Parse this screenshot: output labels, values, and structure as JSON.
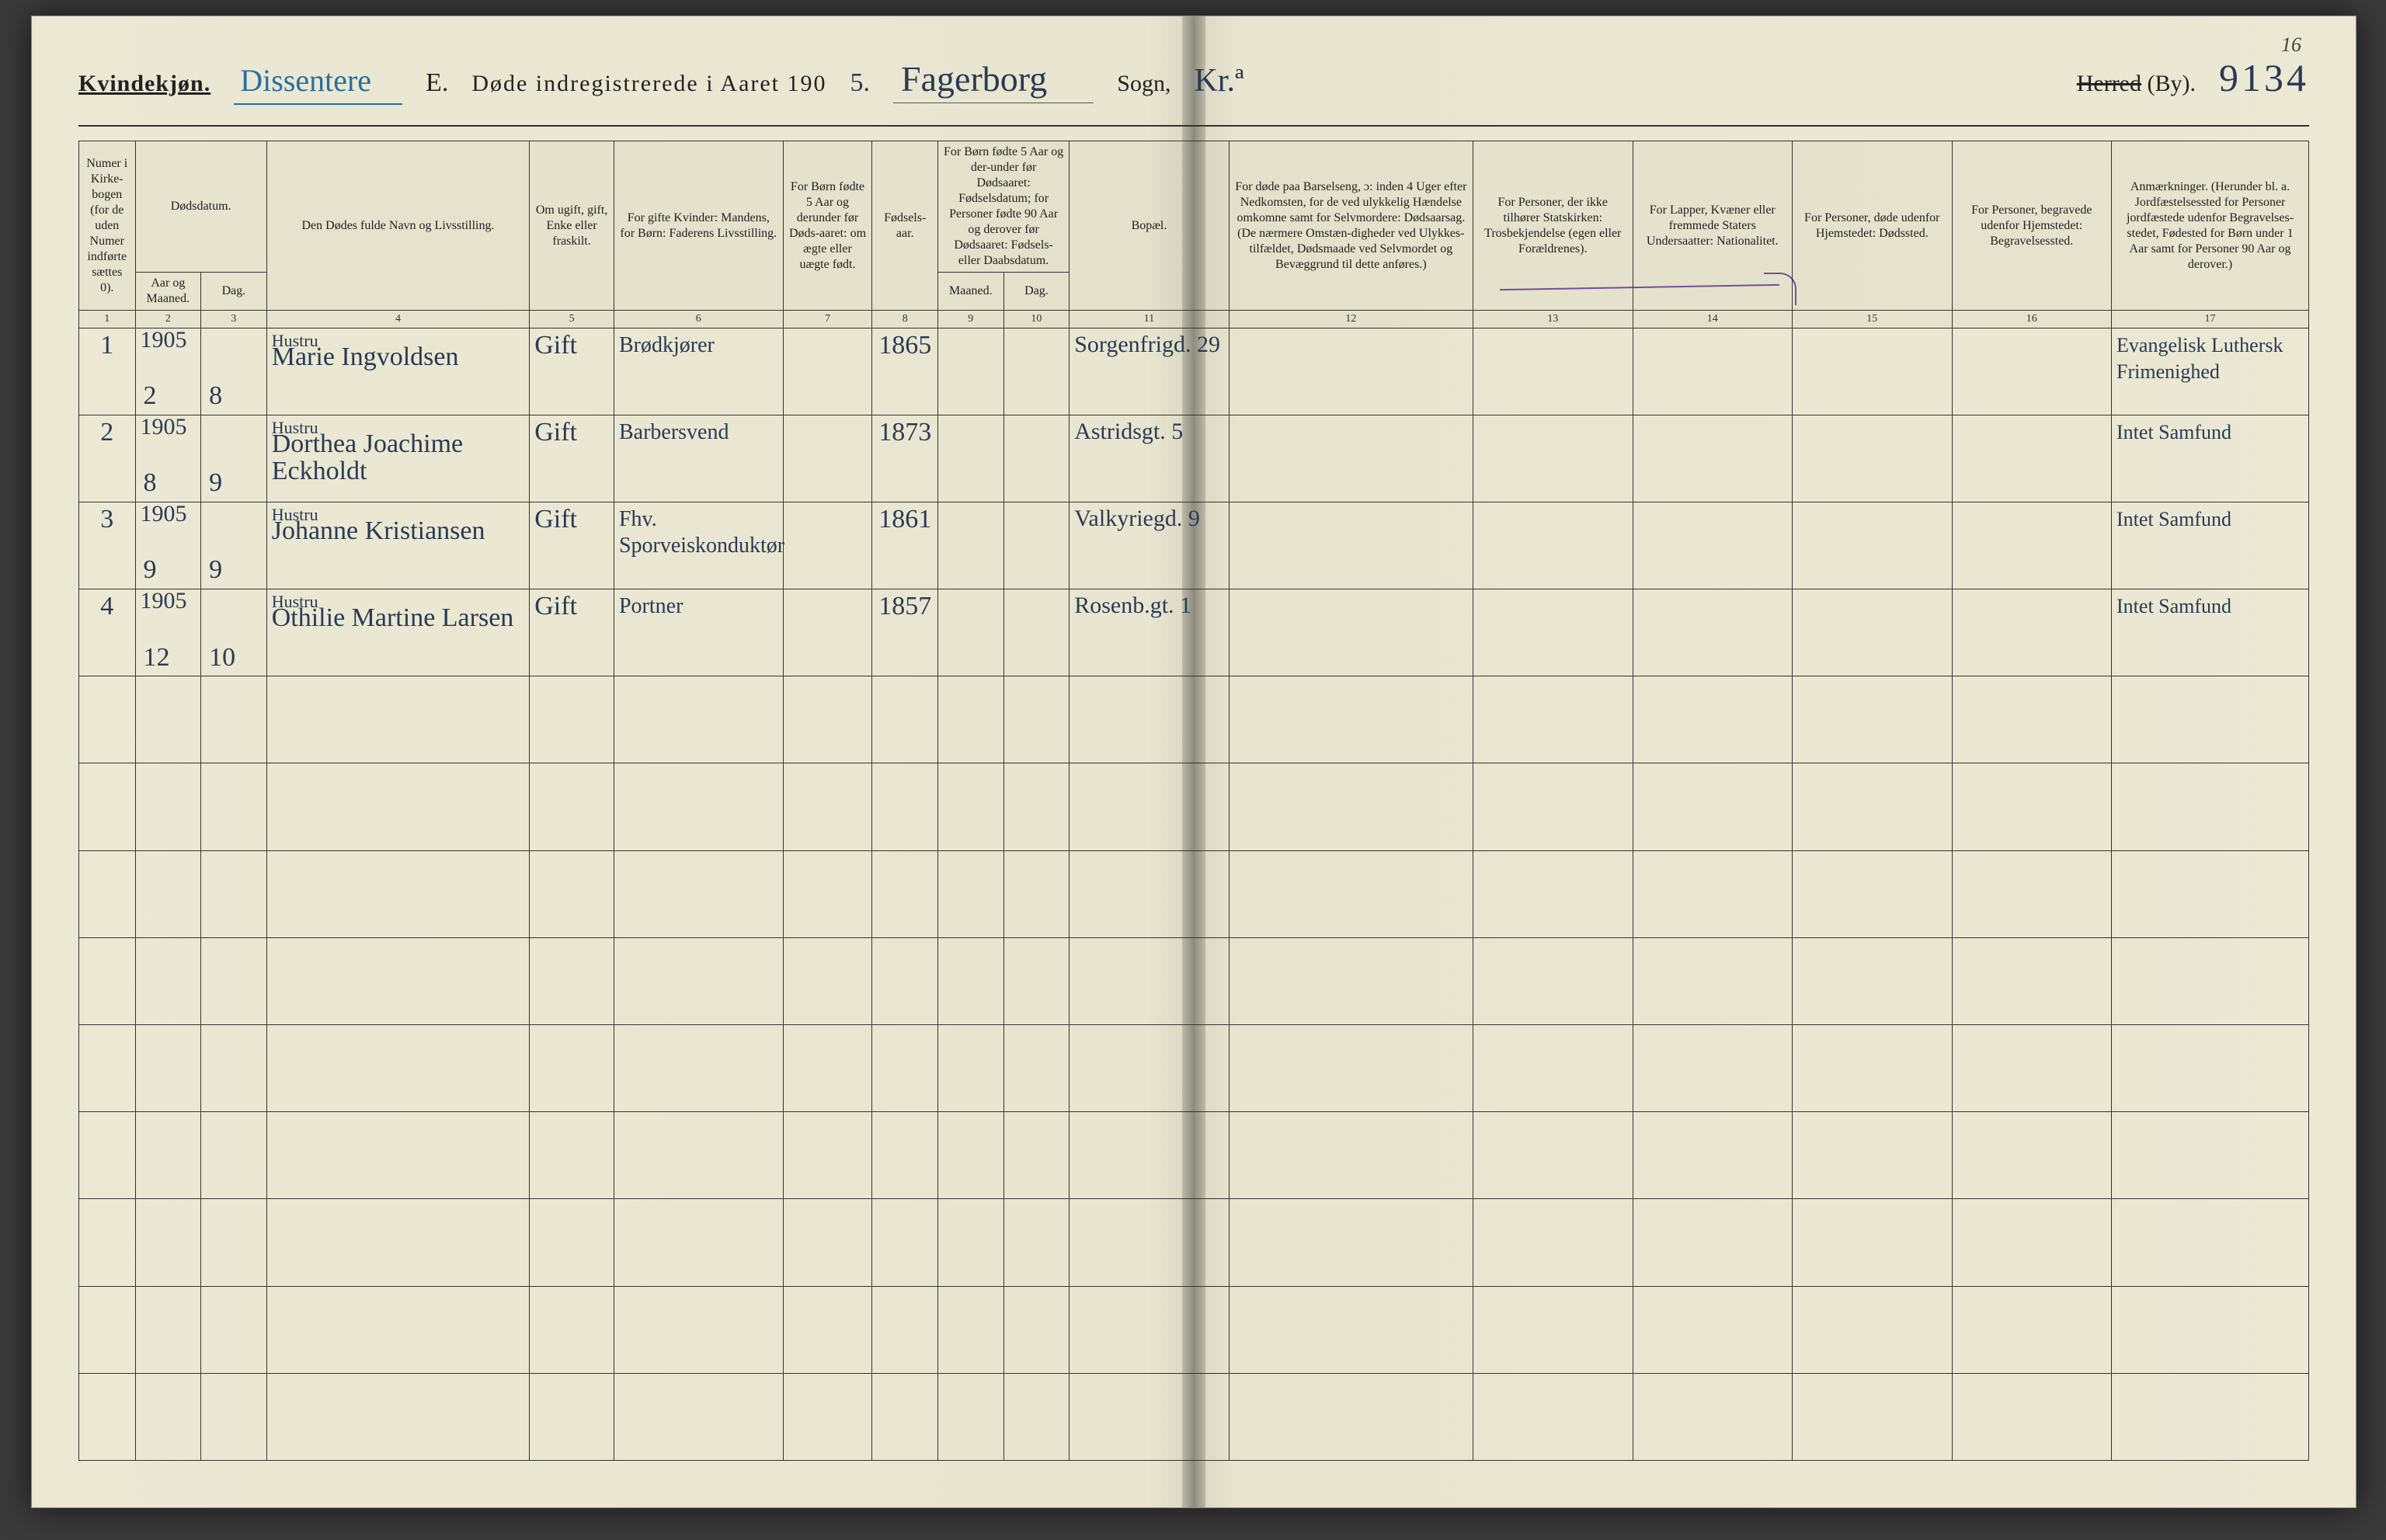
{
  "page_corner": "16",
  "header": {
    "kvindekjon_label": "Kvindekjøn.",
    "dissenter_script": "Dissentere",
    "section_letter": "E.",
    "title_printed": "Døde indregistrerede i Aaret 190",
    "year_suffix_hand": "5.",
    "parish_script": "Fagerborg",
    "sogn_label": "Sogn,",
    "sogn_script": "Kr.ª",
    "herred_label": "Herred (By).",
    "code_script": "9134"
  },
  "columns": {
    "c1": "Numer i Kirke-bogen (for de uden Numer indførte sættes 0).",
    "c2_top": "Dødsdatum.",
    "c2": "Aar og Maaned.",
    "c3": "Dag.",
    "c4": "Den Dødes fulde Navn og Livsstilling.",
    "c5": "Om ugift, gift, Enke eller fraskilt.",
    "c6": "For gifte Kvinder: Mandens, for Børn: Faderens Livsstilling.",
    "c7": "For Børn fødte 5 Aar og derunder før Døds-aaret: om ægte eller uægte født.",
    "c8": "Fødsels-aar.",
    "c9_top": "For Børn fødte 5 Aar og der-under før Dødsaaret: Fødselsdatum; for Personer fødte 90 Aar og derover før Dødsaaret: Fødsels- eller Daabsdatum.",
    "c9": "Maaned.",
    "c10": "Dag.",
    "c11": "Bopæl.",
    "c12": "For døde paa Barselseng, ɔ: inden 4 Uger efter Nedkomsten, for de ved ulykkelig Hændelse omkomne samt for Selvmordere: Dødsaarsag. (De nærmere Omstæn-digheder ved Ulykkes-tilfældet, Dødsmaade ved Selvmordet og Bevæggrund til dette anføres.)",
    "c13": "For Personer, der ikke tilhører Statskirken: Trosbekjendelse (egen eller Forældrenes).",
    "c14": "For Lapper, Kvæner eller fremmede Staters Undersaatter: Nationalitet.",
    "c15": "For Personer, døde udenfor Hjemstedet: Dødssted.",
    "c16": "For Personer, begravede udenfor Hjemstedet: Begravelsessted.",
    "c17": "Anmærkninger. (Herunder bl. a. Jordfæstelsessted for Personer jordfæstede udenfor Begravelses-stedet, Fødested for Børn under 1 Aar samt for Personer 90 Aar og derover.)"
  },
  "colnums": [
    "1",
    "2",
    "3",
    "4",
    "5",
    "6",
    "7",
    "8",
    "9",
    "10",
    "11",
    "12",
    "13",
    "14",
    "15",
    "16",
    "17"
  ],
  "rows": [
    {
      "num": "1",
      "year": "1905",
      "month": "2",
      "day": "8",
      "name_sup": "Hustru",
      "name": "Marie Ingvoldsen",
      "civil": "Gift",
      "spouse": "Brødkjører",
      "birthyear": "1865",
      "residence": "Sorgenfrigd. 29",
      "remarks": "Evangelisk Luthersk Frimenighed"
    },
    {
      "num": "2",
      "year": "1905",
      "month": "8",
      "day": "9",
      "name_sup": "Hustru",
      "name": "Dorthea Joachime Eckholdt",
      "civil": "Gift",
      "spouse": "Barbersvend",
      "birthyear": "1873",
      "residence": "Astridsgt. 5",
      "remarks": "Intet Samfund"
    },
    {
      "num": "3",
      "year": "1905",
      "month": "9",
      "day": "9",
      "name_sup": "Hustru",
      "name": "Johanne Kristiansen",
      "civil": "Gift",
      "spouse": "Fhv. Sporveiskonduktør",
      "birthyear": "1861",
      "residence": "Valkyriegd. 9",
      "remarks": "Intet Samfund"
    },
    {
      "num": "4",
      "year": "1905",
      "month": "12",
      "day": "10",
      "name_sup": "Hustru",
      "name": "Othilie Martine Larsen",
      "civil": "Gift",
      "spouse": "Portner",
      "birthyear": "1857",
      "residence": "Rosenb.gt. 1",
      "remarks": "Intet Samfund"
    }
  ],
  "blank_rows": 9,
  "colors": {
    "paper": "#ebe9d4",
    "ink": "#2b3a55",
    "blue_pencil": "#2a6f9e",
    "purple": "#7a4fa0",
    "rule": "#333333"
  }
}
